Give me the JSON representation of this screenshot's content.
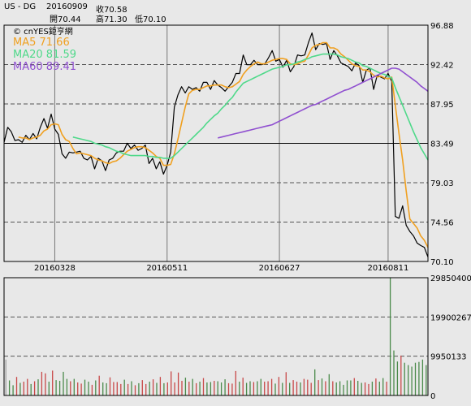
{
  "header": {
    "symbol": "US - DG",
    "date": "20160909",
    "close_label": "收70.58",
    "open_label": "開70.44",
    "high_label": "高71.30",
    "low_label": "低70.10"
  },
  "brand": "© cnYES鉅亨網",
  "colors": {
    "background": "#e8e8e8",
    "price": "#000000",
    "ma5": "#f0a020",
    "ma20": "#4fd98a",
    "ma60": "#9050d0",
    "grid": "#555555",
    "volume_up": "#c84848",
    "volume_down": "#4a8a4a",
    "volume_neutral": "#a0a0a0"
  },
  "chart_data": [
    {
      "type": "line",
      "title": "",
      "legend_placement": "top-left",
      "grid": true,
      "ylim": [
        70.1,
        96.88
      ],
      "y_ticks": [
        "96.88",
        "92.42",
        "87.95",
        "83.49",
        "79.03",
        "74.56",
        "70.10"
      ],
      "y_tick_values": [
        96.88,
        92.42,
        87.95,
        83.49,
        79.03,
        74.56,
        70.1
      ],
      "x_tick_labels": [
        "20160328",
        "20160511",
        "20160627",
        "20160811"
      ],
      "x_tick_index": [
        14,
        45,
        76,
        106
      ],
      "ma_legend": [
        {
          "label": "MA5 71.66",
          "series": "ma5"
        },
        {
          "label": "MA20 81.59",
          "series": "ma20"
        },
        {
          "label": "MA60 89.41",
          "series": "ma60"
        }
      ],
      "series": [
        {
          "key": "price",
          "values": [
            83.6,
            85.3,
            84.8,
            83.8,
            83.9,
            83.6,
            84.4,
            83.9,
            84.6,
            84.0,
            85.3,
            86.3,
            85.2,
            86.8,
            85.1,
            84.5,
            82.3,
            81.8,
            82.5,
            82.4,
            82.5,
            82.6,
            81.8,
            81.6,
            82.0,
            80.6,
            81.8,
            81.5,
            80.4,
            81.6,
            81.8,
            82.4,
            82.6,
            82.6,
            83.5,
            82.9,
            83.3,
            82.7,
            82.9,
            83.3,
            81.2,
            81.8,
            80.6,
            81.4,
            80.0,
            81.0,
            82.5,
            87.6,
            89.0,
            89.9,
            89.2,
            89.9,
            89.6,
            89.8,
            89.4,
            90.4,
            90.4,
            89.6,
            90.6,
            90.1,
            89.8,
            89.4,
            89.9,
            90.4,
            91.4,
            91.4,
            93.5,
            92.4,
            92.4,
            92.9,
            92.4,
            92.4,
            92.5,
            93.2,
            94.0,
            92.8,
            93.0,
            92.1,
            92.9,
            91.6,
            92.2,
            93.5,
            93.4,
            93.5,
            94.9,
            96.0,
            94.1,
            94.8,
            94.7,
            94.8,
            93.0,
            94.0,
            93.4,
            92.6,
            92.4,
            92.2,
            91.7,
            92.6,
            92.3,
            90.4,
            91.8,
            92.0,
            89.6,
            91.2,
            91.0,
            90.8,
            91.4,
            90.5,
            75.2,
            75.0,
            76.4,
            74.2,
            73.5,
            73.0,
            72.2,
            71.9,
            71.7,
            70.6
          ],
          "color": "#000000"
        },
        {
          "key": "ma5",
          "values": [
            null,
            null,
            null,
            null,
            84.2,
            84.1,
            84.1,
            83.9,
            84.1,
            84.2,
            84.4,
            84.9,
            85.1,
            85.6,
            85.7,
            85.6,
            84.5,
            83.9,
            83.7,
            82.9,
            82.3,
            82.4,
            82.3,
            82.2,
            82.1,
            81.8,
            81.6,
            81.5,
            81.3,
            81.2,
            81.4,
            81.5,
            81.8,
            82.2,
            82.6,
            82.8,
            83.0,
            83.1,
            83.1,
            83.0,
            82.7,
            82.4,
            82.0,
            81.8,
            81.0,
            81.0,
            81.1,
            82.3,
            84.0,
            85.8,
            87.6,
            89.1,
            89.5,
            89.6,
            89.6,
            89.8,
            90.0,
            90.0,
            90.1,
            90.1,
            90.1,
            89.9,
            89.8,
            89.9,
            90.2,
            90.5,
            91.3,
            91.8,
            92.2,
            92.5,
            92.7,
            92.5,
            92.5,
            92.7,
            92.9,
            93.0,
            93.1,
            93.1,
            93.0,
            92.5,
            92.4,
            92.5,
            92.7,
            92.8,
            93.5,
            94.3,
            94.6,
            94.7,
            94.9,
            94.9,
            94.3,
            94.3,
            94.1,
            93.6,
            93.3,
            92.9,
            92.5,
            92.3,
            92.2,
            91.8,
            91.8,
            91.6,
            91.2,
            91.0,
            91.1,
            90.9,
            90.8,
            91.0,
            87.8,
            84.6,
            81.6,
            78.1,
            74.9,
            74.4,
            73.9,
            73.0,
            72.5,
            71.7
          ],
          "color": "#f0a020"
        },
        {
          "key": "ma20",
          "values": [
            null,
            null,
            null,
            null,
            null,
            null,
            null,
            null,
            null,
            null,
            null,
            null,
            null,
            null,
            null,
            null,
            null,
            null,
            null,
            84.2,
            84.1,
            84.0,
            83.9,
            83.8,
            83.7,
            83.5,
            83.4,
            83.3,
            83.1,
            83.0,
            82.8,
            82.6,
            82.5,
            82.3,
            82.2,
            82.1,
            82.1,
            82.1,
            82.1,
            82.1,
            82.0,
            82.0,
            81.9,
            81.9,
            81.8,
            81.8,
            81.8,
            82.1,
            82.5,
            82.9,
            83.3,
            83.7,
            84.1,
            84.5,
            84.9,
            85.3,
            85.8,
            86.2,
            86.6,
            86.9,
            87.4,
            87.8,
            88.3,
            88.7,
            89.3,
            89.8,
            90.3,
            90.5,
            90.7,
            90.9,
            91.1,
            91.3,
            91.5,
            91.7,
            91.9,
            92.0,
            92.1,
            92.2,
            92.4,
            92.4,
            92.5,
            92.7,
            92.8,
            93.0,
            93.1,
            93.3,
            93.4,
            93.5,
            93.6,
            93.6,
            93.6,
            93.6,
            93.5,
            93.3,
            93.2,
            93.1,
            92.9,
            92.7,
            92.6,
            92.3,
            92.2,
            92.0,
            91.8,
            91.6,
            91.4,
            91.3,
            91.1,
            90.9,
            89.8,
            88.8,
            87.8,
            86.8,
            85.8,
            84.8,
            83.9,
            83.0,
            82.3,
            81.6
          ],
          "color": "#4fd98a"
        },
        {
          "key": "ma60",
          "values": [
            null,
            null,
            null,
            null,
            null,
            null,
            null,
            null,
            null,
            null,
            null,
            null,
            null,
            null,
            null,
            null,
            null,
            null,
            null,
            null,
            null,
            null,
            null,
            null,
            null,
            null,
            null,
            null,
            null,
            null,
            null,
            null,
            null,
            null,
            null,
            null,
            null,
            null,
            null,
            null,
            null,
            null,
            null,
            null,
            null,
            null,
            null,
            null,
            null,
            null,
            null,
            null,
            null,
            null,
            null,
            null,
            null,
            null,
            null,
            84.1,
            84.2,
            84.3,
            84.4,
            84.5,
            84.6,
            84.7,
            84.8,
            84.9,
            85.0,
            85.1,
            85.2,
            85.3,
            85.4,
            85.5,
            85.6,
            85.8,
            86.0,
            86.2,
            86.4,
            86.6,
            86.8,
            87.0,
            87.2,
            87.4,
            87.6,
            87.8,
            87.9,
            88.1,
            88.3,
            88.5,
            88.7,
            88.9,
            89.1,
            89.3,
            89.5,
            89.6,
            89.8,
            90.0,
            90.2,
            90.4,
            90.6,
            90.8,
            91.0,
            91.2,
            91.4,
            91.6,
            91.8,
            92.0,
            92.0,
            91.9,
            91.6,
            91.3,
            91.0,
            90.7,
            90.4,
            90.0,
            89.7,
            89.4
          ],
          "color": "#9050d0"
        }
      ]
    },
    {
      "type": "bar",
      "title": "",
      "grid": true,
      "ylim": [
        0,
        29850400
      ],
      "y_ticks": [
        "29850400",
        "19900267",
        "9950133",
        "0"
      ],
      "y_tick_values": [
        29850400,
        19900267,
        9950133,
        0
      ],
      "series": [
        {
          "name": "",
          "values": [
            9.1,
            3.8,
            2.6,
            4.7,
            3.2,
            3.5,
            4.2,
            2.9,
            3.6,
            4.1,
            6.0,
            5.6,
            3.5,
            6.3,
            3.9,
            3.7,
            6.0,
            4.2,
            3.6,
            4.2,
            3.3,
            3.0,
            4.0,
            3.5,
            2.7,
            3.8,
            5.0,
            3.3,
            3.1,
            4.6,
            3.4,
            3.4,
            2.9,
            4.0,
            2.9,
            3.6,
            2.6,
            3.1,
            3.9,
            2.9,
            3.5,
            4.1,
            3.2,
            4.7,
            3.1,
            3.3,
            6.1,
            3.3,
            5.8,
            3.7,
            4.5,
            3.5,
            4.2,
            3.1,
            3.5,
            4.4,
            3.3,
            3.4,
            3.7,
            3.6,
            3.3,
            4.1,
            3.1,
            3.0,
            6.2,
            3.5,
            4.5,
            3.2,
            3.6,
            3.4,
            3.6,
            4.2,
            3.5,
            3.6,
            4.2,
            3.0,
            4.7,
            3.2,
            5.9,
            3.2,
            3.9,
            3.5,
            3.3,
            4.2,
            4.0,
            3.2,
            6.6,
            3.9,
            4.3,
            3.6,
            5.4,
            3.6,
            3.3,
            3.6,
            2.7,
            3.8,
            3.8,
            4.4,
            3.7,
            3.2,
            3.3,
            2.9,
            3.5,
            4.3,
            3.5,
            4.4,
            3.5,
            29.85,
            11.4,
            8.6,
            10.1,
            8.3,
            7.7,
            7.3,
            8.3,
            8.5,
            9.1,
            7.7
          ],
          "directions": [
            "n",
            "d",
            "d",
            "u",
            "d",
            "u",
            "u",
            "d",
            "u",
            "d",
            "u",
            "u",
            "d",
            "u",
            "d",
            "d",
            "d",
            "d",
            "u",
            "d",
            "u",
            "u",
            "d",
            "d",
            "u",
            "d",
            "u",
            "d",
            "d",
            "u",
            "u",
            "u",
            "u",
            "d",
            "u",
            "d",
            "u",
            "d",
            "u",
            "u",
            "d",
            "u",
            "d",
            "u",
            "d",
            "u",
            "u",
            "u",
            "u",
            "u",
            "d",
            "u",
            "d",
            "u",
            "d",
            "u",
            "d",
            "d",
            "u",
            "d",
            "d",
            "d",
            "u",
            "u",
            "u",
            "d",
            "u",
            "d",
            "d",
            "u",
            "d",
            "d",
            "u",
            "u",
            "u",
            "d",
            "u",
            "d",
            "u",
            "d",
            "u",
            "u",
            "d",
            "u",
            "u",
            "u",
            "d",
            "u",
            "d",
            "u",
            "d",
            "u",
            "d",
            "d",
            "d",
            "d",
            "d",
            "u",
            "d",
            "d",
            "u",
            "u",
            "d",
            "u",
            "d",
            "d",
            "u",
            "d",
            "d",
            "d",
            "u",
            "d",
            "d",
            "d",
            "d",
            "d",
            "d",
            "d"
          ]
        }
      ]
    }
  ]
}
